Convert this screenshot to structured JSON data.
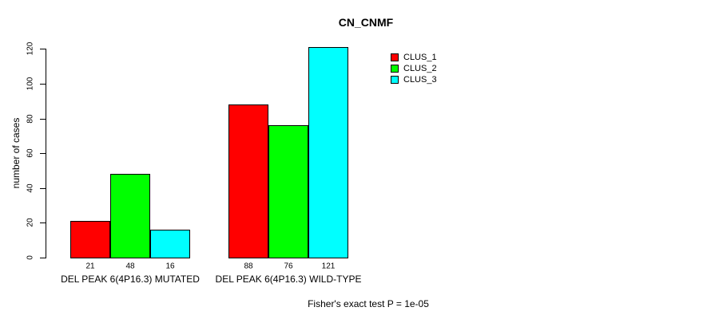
{
  "chart_data": {
    "type": "bar",
    "title": "CN_CNMF",
    "ylabel": "number of cases",
    "ylim": [
      0,
      120
    ],
    "yticks": [
      0,
      20,
      40,
      60,
      80,
      100,
      120
    ],
    "categories": [
      "DEL PEAK 6(4P16.3) MUTATED",
      "DEL PEAK 6(4P16.3) WILD-TYPE"
    ],
    "series": [
      {
        "name": "CLUS_1",
        "color": "#FF0000",
        "values": [
          21,
          88
        ]
      },
      {
        "name": "CLUS_2",
        "color": "#00FF00",
        "values": [
          48,
          76
        ]
      },
      {
        "name": "CLUS_3",
        "color": "#00FFFF",
        "values": [
          16,
          121
        ]
      }
    ],
    "bar_value_labels": [
      [
        21,
        48,
        16
      ],
      [
        88,
        76,
        121
      ]
    ],
    "legend_position": "top-right",
    "grid": false,
    "bar_border_color": "#000000",
    "annotation": "Fisher's exact test P = 1e-05"
  }
}
